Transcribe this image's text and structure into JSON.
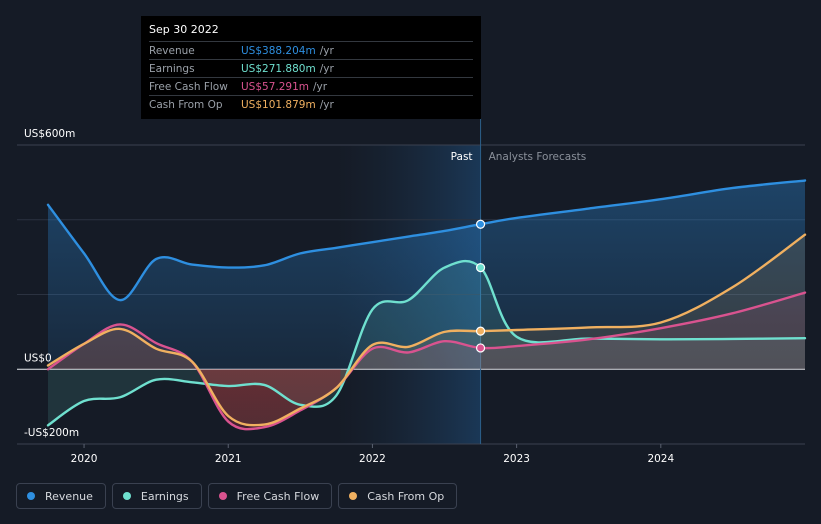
{
  "tooltip": {
    "date": "Sep 30 2022",
    "rows": [
      {
        "label": "Revenue",
        "value": "US$388.204m",
        "unit": "/yr",
        "color": "#2e8fe0"
      },
      {
        "label": "Earnings",
        "value": "US$271.880m",
        "unit": "/yr",
        "color": "#6fe0cf"
      },
      {
        "label": "Free Cash Flow",
        "value": "US$57.291m",
        "unit": "/yr",
        "color": "#d9538f"
      },
      {
        "label": "Cash From Op",
        "value": "US$101.879m",
        "unit": "/yr",
        "color": "#f0b060"
      }
    ]
  },
  "legend": [
    {
      "label": "Revenue",
      "color": "#2e8fe0"
    },
    {
      "label": "Earnings",
      "color": "#6fe0cf"
    },
    {
      "label": "Free Cash Flow",
      "color": "#d9538f"
    },
    {
      "label": "Cash From Op",
      "color": "#f0b060"
    }
  ],
  "chart_data": {
    "type": "line",
    "y_tick_labels": [
      "US$600m",
      "US$0",
      "-US$200m"
    ],
    "ylim": [
      -200,
      600
    ],
    "xlim": [
      2019.75,
      2025.0
    ],
    "x_tick_labels": [
      "2020",
      "2021",
      "2022",
      "2023",
      "2024"
    ],
    "x_ticks": [
      2020,
      2021,
      2022,
      2023,
      2024
    ],
    "past_label": "Past",
    "forecast_label": "Analysts Forecasts",
    "past_end": 2022.75,
    "highlight_start": 2021.75,
    "grid": true,
    "series": [
      {
        "name": "Revenue",
        "color": "#2e8fe0",
        "x": [
          2019.75,
          2020.0,
          2020.25,
          2020.5,
          2020.75,
          2021.0,
          2021.25,
          2021.5,
          2021.75,
          2022.0,
          2022.25,
          2022.5,
          2022.75,
          2023.0,
          2023.5,
          2024.0,
          2024.5,
          2025.0
        ],
        "y": [
          440,
          310,
          185,
          295,
          280,
          272,
          278,
          310,
          325,
          340,
          355,
          370,
          388,
          405,
          430,
          455,
          485,
          505
        ]
      },
      {
        "name": "Earnings",
        "color": "#6fe0cf",
        "x": [
          2019.75,
          2020.0,
          2020.25,
          2020.5,
          2020.75,
          2021.0,
          2021.25,
          2021.5,
          2021.75,
          2022.0,
          2022.25,
          2022.5,
          2022.75,
          2023.0,
          2023.5,
          2024.0,
          2024.5,
          2025.0
        ],
        "y": [
          -150,
          -85,
          -75,
          -28,
          -35,
          -45,
          -42,
          -95,
          -70,
          160,
          185,
          272,
          272,
          87,
          82,
          80,
          81,
          83
        ]
      },
      {
        "name": "Free Cash Flow",
        "color": "#d9538f",
        "x": [
          2019.75,
          2020.0,
          2020.25,
          2020.5,
          2020.75,
          2021.0,
          2021.25,
          2021.5,
          2021.75,
          2022.0,
          2022.25,
          2022.5,
          2022.75,
          2023.0,
          2023.5,
          2024.0,
          2024.5,
          2025.0
        ],
        "y": [
          0,
          68,
          120,
          70,
          20,
          -140,
          -155,
          -110,
          -50,
          55,
          45,
          75,
          57,
          62,
          80,
          110,
          150,
          205
        ]
      },
      {
        "name": "Cash From Op",
        "color": "#f0b060",
        "x": [
          2019.75,
          2020.0,
          2020.25,
          2020.5,
          2020.75,
          2021.0,
          2021.25,
          2021.5,
          2021.75,
          2022.0,
          2022.25,
          2022.5,
          2022.75,
          2023.0,
          2023.5,
          2024.0,
          2024.5,
          2025.0
        ],
        "y": [
          10,
          68,
          108,
          55,
          20,
          -125,
          -148,
          -105,
          -50,
          65,
          60,
          100,
          102,
          105,
          112,
          125,
          220,
          360
        ]
      }
    ]
  }
}
